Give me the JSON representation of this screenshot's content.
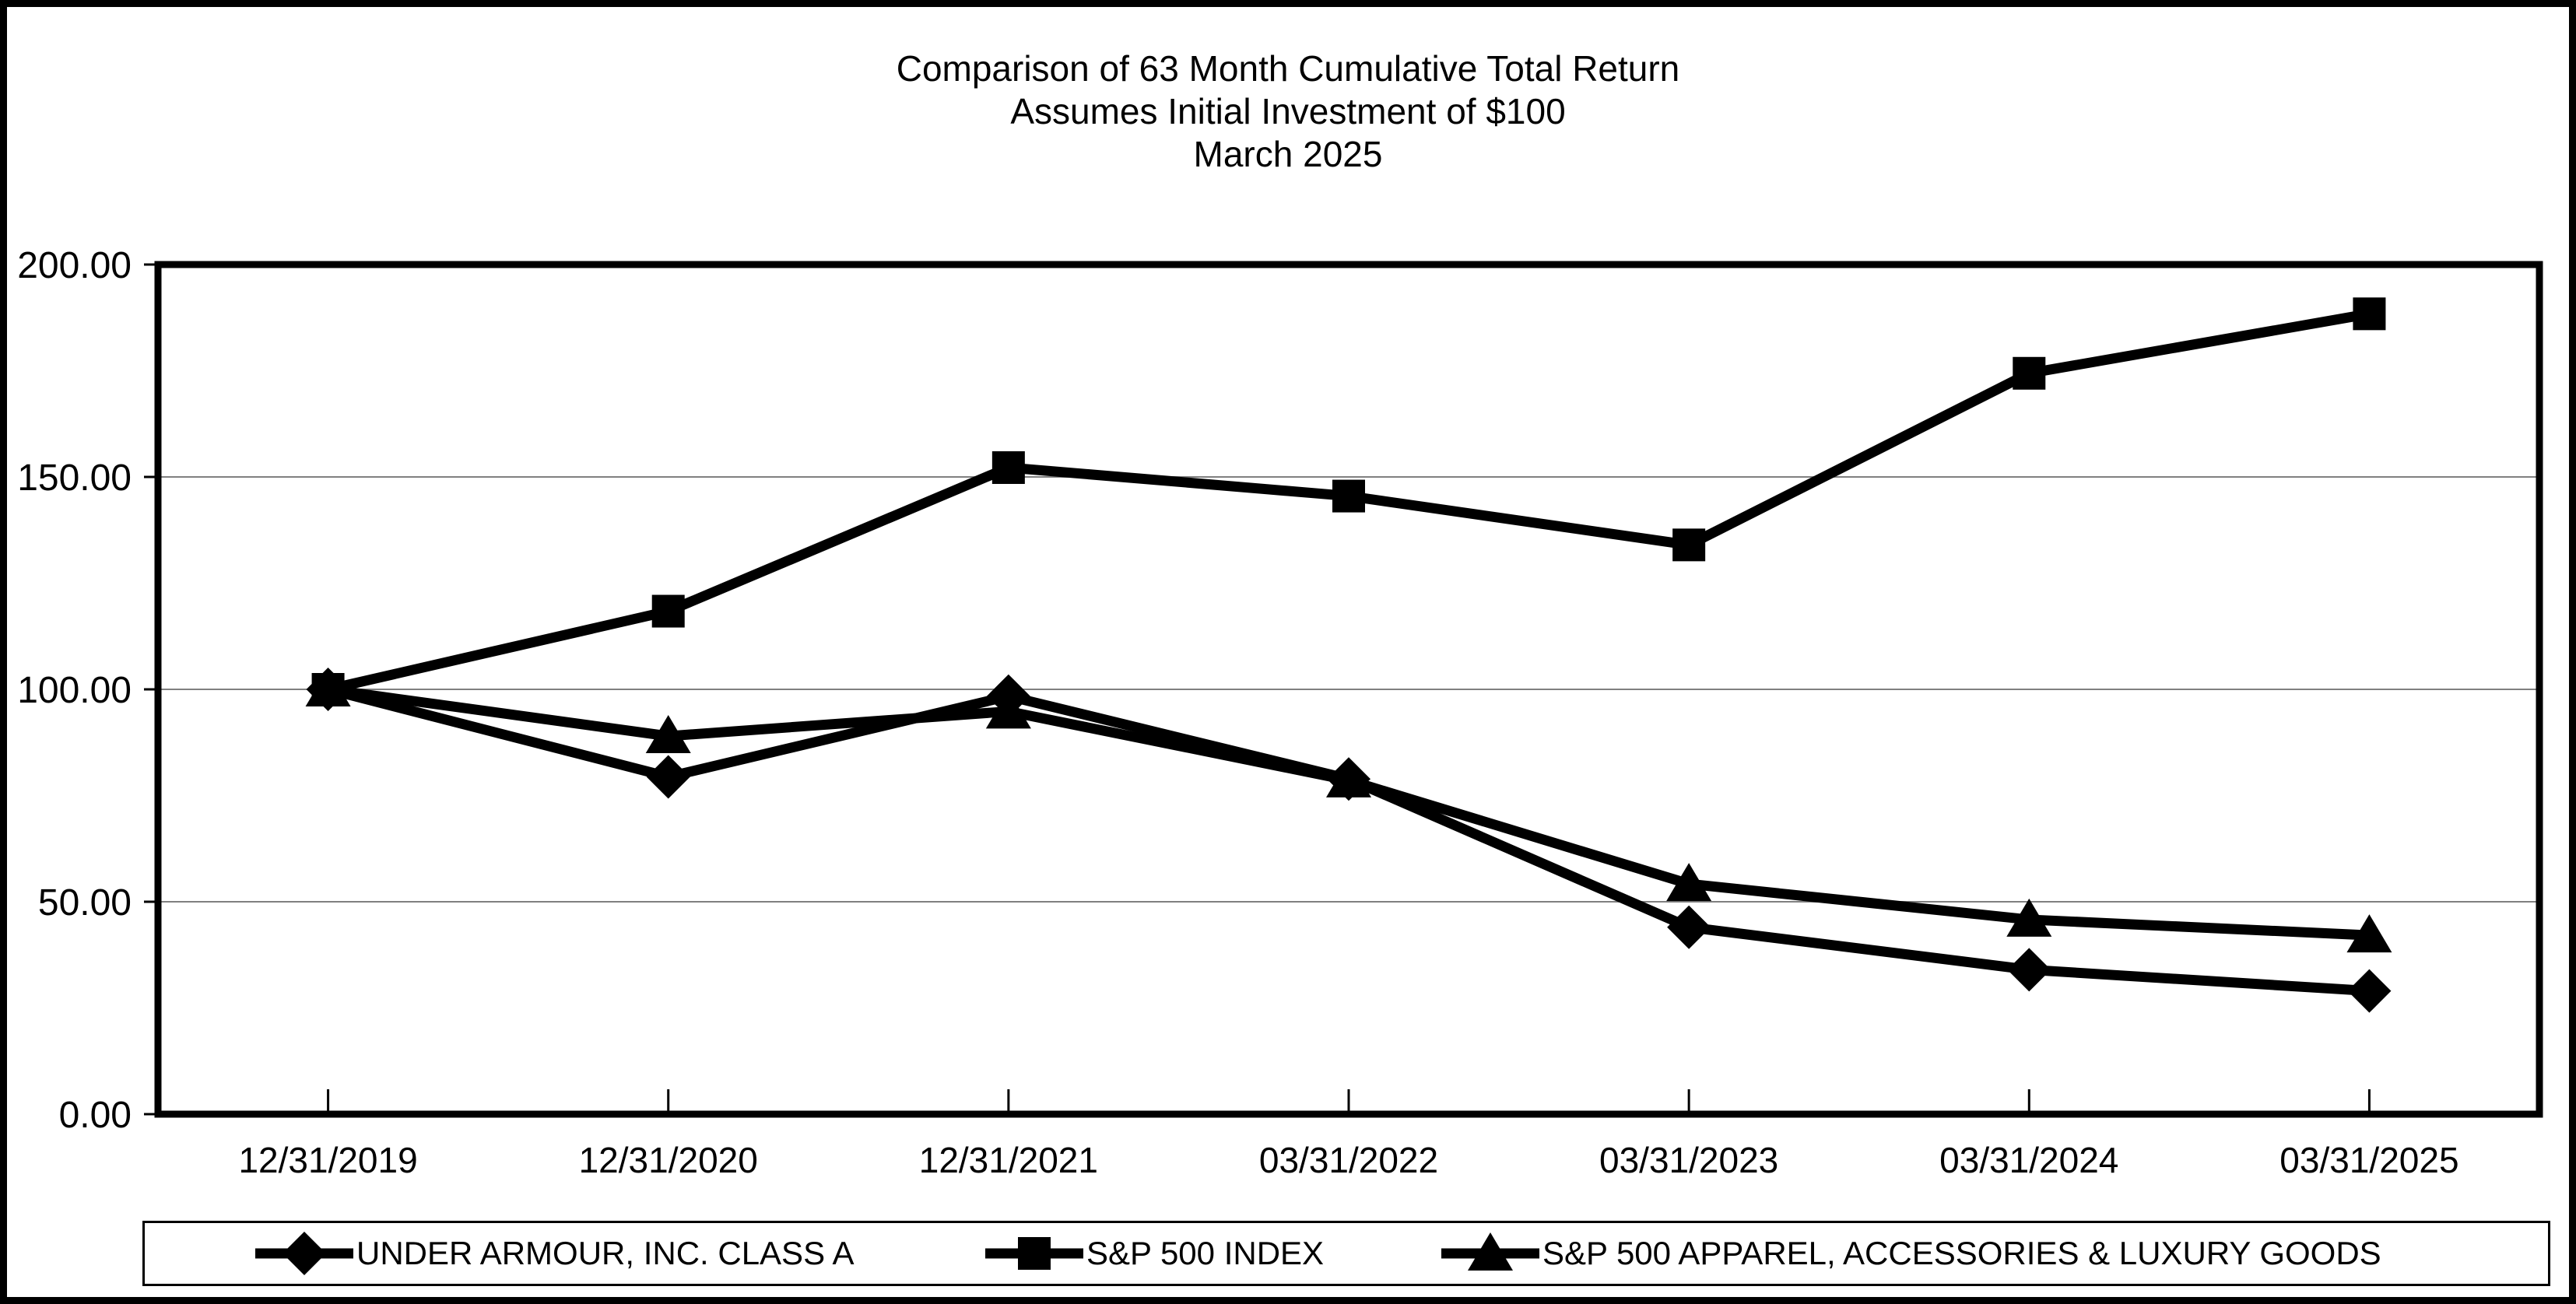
{
  "title": {
    "line1": "Comparison of 63 Month Cumulative Total Return",
    "line2": "Assumes Initial Investment of $100",
    "line3": "March 2025"
  },
  "colors": {
    "series": "#000000",
    "gridline": "#808080",
    "plot_border": "#000000",
    "background": "#ffffff"
  },
  "chart_data": {
    "type": "line",
    "title": "Comparison of 63 Month Cumulative Total Return",
    "subtitle": "Assumes Initial Investment of $100",
    "period_label": "March 2025",
    "categories": [
      "12/31/2019",
      "12/31/2020",
      "12/31/2021",
      "03/31/2022",
      "03/31/2023",
      "03/31/2024",
      "03/31/2025"
    ],
    "y_tick_labels": [
      "0.00",
      "50.00",
      "100.00",
      "150.00",
      "200.00"
    ],
    "ylim": [
      0,
      200
    ],
    "y_gridlines": [
      50,
      100,
      150
    ],
    "grid": "horizontal",
    "legend_position": "bottom",
    "series": [
      {
        "name": "UNDER ARMOUR, INC. CLASS A",
        "marker": "diamond",
        "values": [
          100.0,
          79.4,
          98.4,
          78.9,
          44.0,
          34.0,
          29.0
        ]
      },
      {
        "name": "S&P 500 INDEX",
        "marker": "square",
        "values": [
          100.0,
          118.4,
          152.2,
          145.5,
          134.0,
          174.4,
          188.4
        ]
      },
      {
        "name": "S&P 500 APPAREL, ACCESSORIES & LUXURY GOODS",
        "marker": "triangle",
        "values": [
          100.0,
          89.0,
          94.8,
          78.6,
          54.2,
          45.8,
          42.1
        ]
      }
    ]
  }
}
